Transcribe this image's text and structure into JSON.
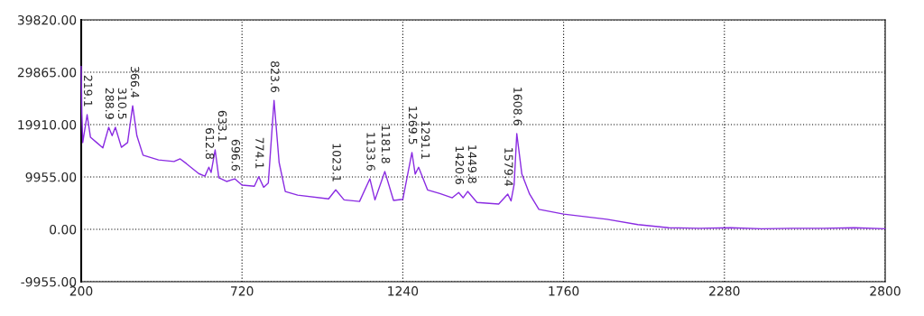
{
  "chart_data": {
    "type": "line",
    "series": [
      {
        "color": "#8a2be2",
        "x": [
          200,
          202,
          205,
          219.1,
          230,
          250,
          270,
          288.9,
          300,
          310.5,
          330,
          350,
          366.4,
          380,
          400,
          450,
          500,
          520,
          540,
          580,
          600,
          612.8,
          620,
          633.1,
          645,
          670,
          696.6,
          720,
          760,
          774.1,
          790,
          805,
          823.6,
          840,
          860,
          900,
          1000,
          1023.1,
          1050,
          1100,
          1133.6,
          1150,
          1181.8,
          1210,
          1240,
          1269.5,
          1280,
          1291.1,
          1320,
          1360,
          1400,
          1420.6,
          1435,
          1449.8,
          1480,
          1550,
          1579.4,
          1590,
          1600,
          1608.6,
          1625,
          1650,
          1680,
          1760,
          1900,
          2000,
          2100,
          2200,
          2300,
          2400,
          2500,
          2600,
          2700,
          2800
        ],
        "values": [
          31000,
          22000,
          16500,
          21800,
          17500,
          16500,
          15500,
          19400,
          17800,
          19400,
          15600,
          16500,
          23500,
          17800,
          14100,
          13200,
          12900,
          13400,
          12500,
          10600,
          10100,
          11800,
          10800,
          15100,
          9800,
          9100,
          9600,
          8400,
          8200,
          10000,
          8000,
          8800,
          24500,
          12700,
          7200,
          6500,
          5800,
          7500,
          5600,
          5300,
          9600,
          5600,
          11000,
          5500,
          5700,
          14600,
          10500,
          11800,
          7500,
          6800,
          6000,
          7000,
          6000,
          7200,
          5100,
          4800,
          6700,
          5400,
          8500,
          18200,
          10500,
          6700,
          3800,
          2900,
          1900,
          900,
          300,
          200,
          300,
          100,
          200,
          200,
          300,
          100
        ]
      }
    ],
    "xlim": [
      200,
      2800
    ],
    "xticks": [
      200,
      720,
      1240,
      1760,
      2280,
      2800
    ],
    "ylim": [
      -9955,
      39820
    ],
    "yticks": [
      {
        "value": -9955,
        "label": "-9955.00"
      },
      {
        "value": 0,
        "label": "0.00"
      },
      {
        "value": 9955,
        "label": "9955.00"
      },
      {
        "value": 19910,
        "label": "19910.00"
      },
      {
        "value": 29865,
        "label": "29865.00"
      },
      {
        "value": 39820,
        "label": "39820.00"
      }
    ],
    "grid": true,
    "marker": "none",
    "line_style": "solid",
    "annotations": [
      {
        "text": "219.1",
        "x": 219.1,
        "y": 21800
      },
      {
        "text": "288.9",
        "x": 288.9,
        "y": 19400
      },
      {
        "text": "310.5",
        "x": 310.5,
        "y": 19400
      },
      {
        "text": "366.4",
        "x": 366.4,
        "y": 23500
      },
      {
        "text": "612.8",
        "x": 612.8,
        "y": 11800
      },
      {
        "text": "633.1",
        "x": 633.1,
        "y": 15100
      },
      {
        "text": "696.6",
        "x": 696.6,
        "y": 9600
      },
      {
        "text": "774.1",
        "x": 774.1,
        "y": 10000
      },
      {
        "text": "823.6",
        "x": 823.6,
        "y": 24500
      },
      {
        "text": "1023.1",
        "x": 1023.1,
        "y": 7500
      },
      {
        "text": "1133.6",
        "x": 1133.6,
        "y": 9600
      },
      {
        "text": "1181.8",
        "x": 1181.8,
        "y": 11000
      },
      {
        "text": "1269.5",
        "x": 1269.5,
        "y": 14600
      },
      {
        "text": "1291.1",
        "x": 1291.1,
        "y": 11800
      },
      {
        "text": "1420.6",
        "x": 1420.6,
        "y": 7000
      },
      {
        "text": "1449.8",
        "x": 1449.8,
        "y": 7200
      },
      {
        "text": "1579.4",
        "x": 1579.4,
        "y": 6700
      },
      {
        "text": "1608.6",
        "x": 1608.6,
        "y": 18200
      }
    ]
  }
}
